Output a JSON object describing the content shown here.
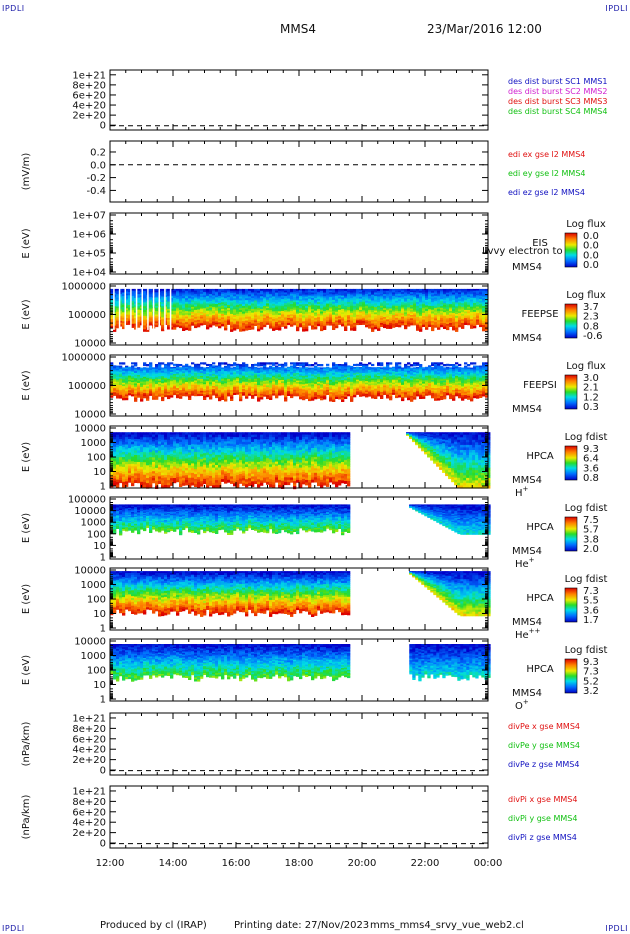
{
  "header": {
    "corner_label": "IPDLI",
    "mission": "MMS4",
    "datetime": "23/Mar/2016 12:00"
  },
  "footer": {
    "produced_by": "Produced by cl (IRAP)",
    "printing_date": "Printing date: 27/Nov/2023",
    "script_name": "mms_mms4_srvy_vue_web2.cl"
  },
  "colors": {
    "blue": "#1010c0",
    "magenta": "#d020d0",
    "red": "#e01010",
    "green": "#10c010"
  },
  "chart_data": [
    {
      "type": "line",
      "ylabel": "",
      "yticks": [
        "1e+21",
        "8e+20",
        "6e+20",
        "4e+20",
        "2e+20",
        "0"
      ],
      "legend": [
        {
          "text": "des dist burst SC1 MMS1",
          "color": "blue"
        },
        {
          "text": "des dist burst SC2 MMS2",
          "color": "magenta"
        },
        {
          "text": "des dist burst SC3 MMS3",
          "color": "red"
        },
        {
          "text": "des dist burst SC4 MMS4",
          "color": "green"
        }
      ],
      "zero_line": "dashed"
    },
    {
      "type": "line",
      "ylabel": "(mV/m)",
      "yticks": [
        "0.2",
        "0.0",
        "-0.2",
        "-0.4"
      ],
      "legend": [
        {
          "text": "edi ex gse l2 MMS4",
          "color": "red"
        },
        {
          "text": "edi ey gse l2 MMS4",
          "color": "green"
        },
        {
          "text": "edi ez gse l2 MMS4",
          "color": "blue"
        }
      ],
      "zero_line": "dashed"
    },
    {
      "type": "heatmap",
      "ylabel": "E (eV)",
      "yticks": [
        "1e+07",
        "1e+06",
        "1e+05",
        "1e+04"
      ],
      "instrument": "EIS",
      "craft": "MMS4",
      "overlay": "Lvvy electron to",
      "cb_title": "Log flux",
      "cb_ticks": [
        "0.0",
        "0.0",
        "0.0",
        "0.0"
      ],
      "coverage": []
    },
    {
      "type": "heatmap",
      "ylabel": "E (eV)",
      "yticks": [
        "1000000",
        "100000",
        "10000"
      ],
      "instrument": "FEEPSE",
      "craft": "MMS4",
      "cb_title": "Log flux",
      "cb_ticks": [
        "3.7",
        "2.3",
        "0.8",
        "-0.6"
      ],
      "coverage": [
        [
          12.0,
          24.0
        ]
      ]
    },
    {
      "type": "heatmap",
      "ylabel": "E (eV)",
      "yticks": [
        "1000000",
        "100000",
        "10000"
      ],
      "instrument": "FEEPSI",
      "craft": "MMS4",
      "cb_title": "Log flux",
      "cb_ticks": [
        "3.0",
        "2.1",
        "1.2",
        "0.3"
      ],
      "coverage": [
        [
          12.0,
          24.0
        ]
      ]
    },
    {
      "type": "heatmap",
      "ylabel": "E (eV)",
      "yticks": [
        "10000",
        "1000",
        "100",
        "10",
        "1"
      ],
      "instrument": "HPCA",
      "craft": "MMS4",
      "species": "H+",
      "cb_title": "Log fdist",
      "cb_ticks": [
        "9.3",
        "6.4",
        "3.6",
        "0.8"
      ],
      "coverage": [
        [
          12.0,
          19.6
        ],
        [
          21.4,
          24.0
        ]
      ]
    },
    {
      "type": "heatmap",
      "ylabel": "E (eV)",
      "yticks": [
        "100000",
        "10000",
        "1000",
        "100",
        "10",
        "1"
      ],
      "instrument": "HPCA",
      "craft": "MMS4",
      "species": "He+",
      "cb_title": "Log fdist",
      "cb_ticks": [
        "7.5",
        "5.7",
        "3.8",
        "2.0"
      ],
      "coverage": [
        [
          12.0,
          19.6
        ],
        [
          21.5,
          24.0
        ]
      ]
    },
    {
      "type": "heatmap",
      "ylabel": "E (eV)",
      "yticks": [
        "10000",
        "1000",
        "100",
        "10",
        "1"
      ],
      "instrument": "HPCA",
      "craft": "MMS4",
      "species": "He++",
      "cb_title": "Log fdist",
      "cb_ticks": [
        "7.3",
        "5.5",
        "3.6",
        "1.7"
      ],
      "coverage": [
        [
          12.0,
          19.6
        ],
        [
          21.5,
          24.0
        ]
      ]
    },
    {
      "type": "heatmap",
      "ylabel": "E (eV)",
      "yticks": [
        "10000",
        "1000",
        "100",
        "10",
        "1"
      ],
      "instrument": "HPCA",
      "craft": "MMS4",
      "species": "O+",
      "cb_title": "Log fdist",
      "cb_ticks": [
        "9.3",
        "7.3",
        "5.2",
        "3.2"
      ],
      "coverage": [
        [
          12.0,
          19.6
        ],
        [
          21.5,
          24.0
        ]
      ]
    },
    {
      "type": "line",
      "ylabel": "(nPa/km)",
      "yticks": [
        "1e+21",
        "8e+20",
        "6e+20",
        "4e+20",
        "2e+20",
        "0"
      ],
      "legend": [
        {
          "text": "divPe x gse MMS4",
          "color": "red"
        },
        {
          "text": "divPe y gse MMS4",
          "color": "green"
        },
        {
          "text": "divPe z gse MMS4",
          "color": "blue"
        }
      ],
      "zero_line": "dashed"
    },
    {
      "type": "line",
      "ylabel": "(nPa/km)",
      "yticks": [
        "1e+21",
        "8e+20",
        "6e+20",
        "4e+20",
        "2e+20",
        "0"
      ],
      "legend": [
        {
          "text": "divPi x gse MMS4",
          "color": "red"
        },
        {
          "text": "divPi y gse MMS4",
          "color": "green"
        },
        {
          "text": "divPi z gse MMS4",
          "color": "blue"
        }
      ],
      "zero_line": "dashed"
    }
  ],
  "xaxis": {
    "ticks": [
      "12:00",
      "14:00",
      "16:00",
      "18:00",
      "20:00",
      "22:00",
      "00:00"
    ],
    "range_hours": [
      12,
      24
    ]
  }
}
